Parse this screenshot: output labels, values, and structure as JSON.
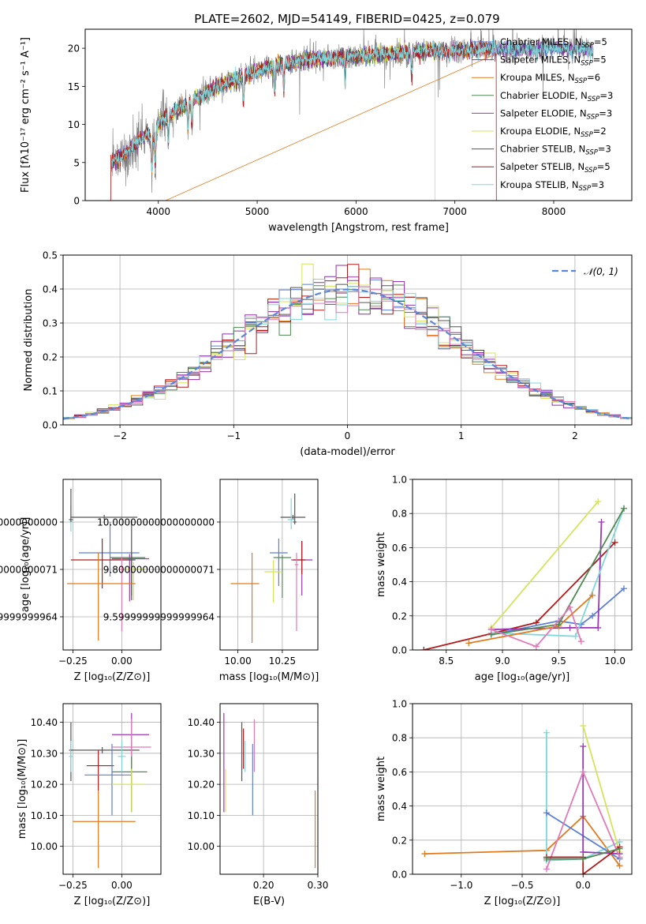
{
  "page_title": "PLATE=2602, MJD=54149, FIBERID=0425, z=0.079",
  "colors": {
    "Chabrier MILES": "#5b7fd6",
    "Salpeter MILES": "#8f2da8",
    "Kroupa MILES": "#e07a1f",
    "Chabrier ELODIE": "#4c8a52",
    "Salpeter ELODIE": "#9b36b4",
    "Kroupa ELODIE": "#d4e35a",
    "Chabrier STELIB": "#555555",
    "Salpeter STELIB": "#b01c1c",
    "Kroupa STELIB": "#7fd6db",
    "pink": "#e07ab8",
    "gaussian": "#5b87d9"
  },
  "chart_data": [
    {
      "id": "spectrum",
      "type": "line",
      "title": "PLATE=2602, MJD=54149, FIBERID=0425, z=0.079",
      "xlabel": "wavelength [Angstrom, rest frame]",
      "ylabel": "Flux [fλ10⁻¹⁷ erg cm⁻² s⁻¹ A⁻¹]",
      "xlim": [
        3260,
        8790
      ],
      "ylim": [
        0,
        22.5
      ],
      "xticks": [
        4000,
        5000,
        6000,
        7000,
        8000
      ],
      "yticks": [
        0,
        5,
        10,
        15,
        20
      ],
      "grid": false,
      "legend_position": "top-right",
      "legend": [
        {
          "name": "Chabrier MILES",
          "nssp": "5"
        },
        {
          "name": "Salpeter MILES",
          "nssp": "5"
        },
        {
          "name": "Kroupa MILES",
          "nssp": "6"
        },
        {
          "name": "Chabrier ELODIE",
          "nssp": "3"
        },
        {
          "name": "Salpeter ELODIE",
          "nssp": "3"
        },
        {
          "name": "Kroupa ELODIE",
          "nssp": "2"
        },
        {
          "name": "Chabrier STELIB",
          "nssp": "3"
        },
        {
          "name": "Salpeter STELIB",
          "nssp": "5"
        },
        {
          "name": "Kroupa STELIB",
          "nssp": "3"
        }
      ],
      "continuum": {
        "x": [
          3520,
          3600,
          3700,
          3800,
          3900,
          4000,
          4200,
          4400,
          4600,
          4800,
          5000,
          5200,
          5400,
          5600,
          5800,
          6000,
          6200,
          6400,
          6600,
          6800,
          7000,
          7200,
          7400,
          7600,
          7800,
          8000,
          8200,
          8400
        ],
        "y": [
          5,
          5.5,
          6.5,
          8,
          9,
          10,
          12,
          13.5,
          15,
          16,
          17,
          17.8,
          18.3,
          18.6,
          18.8,
          19,
          19.2,
          19.3,
          19.5,
          19.6,
          19.7,
          19.8,
          19.9,
          19.8,
          19.9,
          20,
          19.9,
          19.8
        ]
      }
    },
    {
      "id": "residuals",
      "type": "histogram",
      "xlabel": "(data-model)/error",
      "ylabel": "Normed distribution",
      "xlim": [
        -2.5,
        2.5
      ],
      "ylim": [
        0,
        0.5
      ],
      "xticks": [
        -2,
        -1,
        0,
        1,
        2
      ],
      "yticks": [
        0,
        0.1,
        0.2,
        0.3,
        0.4,
        0.5
      ],
      "grid": true,
      "legend_position": "top-right",
      "gaussian_label": "𝒩(0, 1)",
      "bin_width": 0.1
    },
    {
      "id": "age-vs-Z",
      "type": "scatter",
      "xlabel": "Z [log₁₀(Z/Z⊙)]",
      "ylabel": "age  [log₁₀(age/yr)]",
      "xlim": [
        -0.3,
        0.2
      ],
      "ylim": [
        9.46,
        10.18
      ],
      "xticks": [
        -0.25,
        0.0
      ],
      "yticks": [
        9.6,
        9.8,
        10.0
      ],
      "grid": true,
      "points": [
        {
          "series": "Chabrier STELIB",
          "x": -0.09,
          "xerr": [
            0.17,
            0.17
          ],
          "y": 10.02,
          "yerr": [
            0.01,
            0.01
          ]
        },
        {
          "series": "Kroupa STELIB",
          "x": -0.26,
          "xerr": [
            0.01,
            0.01
          ],
          "y": 10.0,
          "yerr": [
            0.04,
            0.07
          ]
        },
        {
          "series": "Chabrier STELIB",
          "x": -0.26,
          "xerr": [
            0.01,
            0.01
          ],
          "y": 10.01,
          "yerr": [
            0.01,
            0.13
          ]
        },
        {
          "series": "Chabrier MILES",
          "x": -0.06,
          "xerr": [
            0.16,
            0.15
          ],
          "y": 9.87,
          "yerr": [
            0.1,
            0.13
          ]
        },
        {
          "series": "Salpeter STELIB",
          "x": -0.1,
          "xerr": [
            0.16,
            0.15
          ],
          "y": 9.84,
          "yerr": [
            0.12,
            0.09
          ]
        },
        {
          "series": "Salpeter ELODIE",
          "x": 0.04,
          "xerr": [
            0.09,
            0.1
          ],
          "y": 9.845,
          "yerr": [
            0.18,
            0.02
          ]
        },
        {
          "series": "Chabrier ELODIE",
          "x": 0.05,
          "xerr": [
            0.11,
            0.07
          ],
          "y": 9.85,
          "yerr": [
            0.16,
            0.02
          ]
        },
        {
          "series": "Kroupa ELODIE",
          "x": 0.06,
          "xerr": [
            0.06,
            0.06
          ],
          "y": 9.8,
          "yerr": [
            0.13,
            0.03
          ]
        },
        {
          "series": "Chabrier STELIB",
          "x": 0.05,
          "xerr": [
            0.02,
            0.02
          ],
          "y": 9.84,
          "yerr": [
            0.17,
            0.17
          ]
        },
        {
          "series": "pink",
          "x": -0.0,
          "xerr": [
            0.01,
            0.01
          ],
          "y": 9.8,
          "yerr": [
            0.26,
            0.05
          ]
        },
        {
          "series": "Kroupa MILES",
          "x": -0.12,
          "xerr": [
            0.16,
            0.19
          ],
          "y": 9.74,
          "yerr": [
            0.24,
            0.13
          ]
        }
      ]
    },
    {
      "id": "age-vs-mass",
      "type": "scatter",
      "xlabel": "mass [log₁₀(M/M⊙)]",
      "ylabel": "",
      "xlim": [
        9.9,
        10.45
      ],
      "ylim": [
        9.46,
        10.18
      ],
      "xticks": [
        10.0,
        10.25
      ],
      "yticks": [
        9.6,
        9.8,
        10.0
      ],
      "grid": true,
      "points": [
        {
          "series": "Chabrier STELIB",
          "x": 10.31,
          "xerr": [
            0.07,
            0.07
          ],
          "y": 10.02,
          "yerr": [
            0.01,
            0.01
          ]
        },
        {
          "series": "Kroupa STELIB",
          "x": 10.3,
          "xerr": [
            0.02,
            0.02
          ],
          "y": 10.01,
          "yerr": [
            0.04,
            0.09
          ]
        },
        {
          "series": "Chabrier STELIB",
          "x": 10.32,
          "xerr": [
            0.01,
            0.01
          ],
          "y": 10.0,
          "yerr": [
            0.01,
            0.12
          ]
        },
        {
          "series": "Chabrier MILES",
          "x": 10.23,
          "xerr": [
            0.05,
            0.05
          ],
          "y": 9.87,
          "yerr": [
            0.14,
            0.06
          ]
        },
        {
          "series": "Chabrier ELODIE",
          "x": 10.25,
          "xerr": [
            0.05,
            0.05
          ],
          "y": 9.85,
          "yerr": [
            0.17,
            0.01
          ]
        },
        {
          "series": "Salpeter ELODIE",
          "x": 10.36,
          "xerr": [
            0.06,
            0.06
          ],
          "y": 9.84,
          "yerr": [
            0.15,
            0.08
          ]
        },
        {
          "series": "Salpeter STELIB",
          "x": 10.36,
          "xerr": [
            0.05,
            0.02
          ],
          "y": 9.84,
          "yerr": [
            0.06,
            0.08
          ]
        },
        {
          "series": "Kroupa ELODIE",
          "x": 10.2,
          "xerr": [
            0.05,
            0.05
          ],
          "y": 9.79,
          "yerr": [
            0.13,
            0.05
          ]
        },
        {
          "series": "pink",
          "x": 10.33,
          "xerr": [
            0.01,
            0.01
          ],
          "y": 9.82,
          "yerr": [
            0.28,
            0.05
          ]
        },
        {
          "series": "Kroupa MILES",
          "x": 10.08,
          "xerr": [
            0.12,
            0.04
          ],
          "y": 9.74,
          "yerr": [
            0.25,
            0.13
          ]
        }
      ]
    },
    {
      "id": "weight-vs-age",
      "type": "line",
      "xlabel": "age  [log₁₀(age/yr)]",
      "ylabel": "mass weight",
      "xlim": [
        8.2,
        10.15
      ],
      "ylim": [
        0,
        1.0
      ],
      "xticks": [
        8.5,
        9.0,
        9.5,
        10.0
      ],
      "yticks": [
        0,
        0.2,
        0.4,
        0.6,
        0.8,
        1.0
      ],
      "grid": true,
      "series": [
        {
          "name": "Kroupa ELODIE",
          "x": [
            8.9,
            9.85
          ],
          "y": [
            0.13,
            0.87
          ]
        },
        {
          "name": "Salpeter STELIB",
          "x": [
            8.3,
            9.3,
            10.0
          ],
          "y": [
            0.0,
            0.16,
            0.63
          ]
        },
        {
          "name": "Chabrier MILES",
          "x": [
            8.9,
            9.5,
            9.7,
            9.8,
            10.08
          ],
          "y": [
            0.09,
            0.17,
            0.15,
            0.2,
            0.36
          ]
        },
        {
          "name": "Salpeter ELODIE",
          "x": [
            8.9,
            9.6,
            9.85,
            9.88
          ],
          "y": [
            0.12,
            0.13,
            0.13,
            0.75
          ]
        },
        {
          "name": "Kroupa STELIB",
          "x": [
            8.9,
            9.65,
            10.08
          ],
          "y": [
            0.1,
            0.08,
            0.83
          ]
        },
        {
          "name": "Kroupa MILES",
          "x": [
            8.7,
            9.5,
            9.8
          ],
          "y": [
            0.04,
            0.14,
            0.32
          ]
        },
        {
          "name": "Chabrier ELODIE",
          "x": [
            8.9,
            9.5,
            10.08
          ],
          "y": [
            0.09,
            0.15,
            0.83
          ]
        },
        {
          "name": "pink",
          "x": [
            8.9,
            9.3,
            9.6,
            9.7
          ],
          "y": [
            0.12,
            0.02,
            0.25,
            0.05
          ]
        }
      ]
    },
    {
      "id": "mass-vs-Z",
      "type": "scatter",
      "xlabel": "Z [log₁₀(Z/Z⊙)]",
      "ylabel": "mass [log₁₀(M/M⊙)]",
      "xlim": [
        -0.3,
        0.2
      ],
      "ylim": [
        9.91,
        10.46
      ],
      "xticks": [
        -0.25,
        0.0
      ],
      "yticks": [
        10.0,
        10.1,
        10.2,
        10.3,
        10.4
      ],
      "grid": true,
      "points": [
        {
          "series": "Chabrier STELIB",
          "x": -0.26,
          "xerr": [
            0.01,
            0.01
          ],
          "y": 10.31,
          "yerr": [
            0.1,
            0.09
          ]
        },
        {
          "series": "Kroupa STELIB",
          "x": -0.26,
          "xerr": [
            0.01,
            0.01
          ],
          "y": 10.29,
          "yerr": [
            0.05,
            0.05
          ]
        },
        {
          "series": "Chabrier STELIB",
          "x": -0.1,
          "xerr": [
            0.16,
            0.19
          ],
          "y": 10.31,
          "yerr": [
            0.01,
            0.01
          ]
        },
        {
          "series": "Salpeter STELIB",
          "x": -0.12,
          "xerr": [
            0.06,
            0.08
          ],
          "y": 10.26,
          "yerr": [
            0.08,
            0.05
          ]
        },
        {
          "series": "Chabrier MILES",
          "x": -0.05,
          "xerr": [
            0.14,
            0.1
          ],
          "y": 10.23,
          "yerr": [
            0.13,
            0.1
          ]
        },
        {
          "series": "Salpeter ELODIE",
          "x": 0.05,
          "xerr": [
            0.1,
            0.09
          ],
          "y": 10.36,
          "yerr": [
            0.25,
            0.07
          ]
        },
        {
          "series": "pink",
          "x": 0.05,
          "xerr": [
            0.1,
            0.1
          ],
          "y": 10.32,
          "yerr": [
            0.08,
            0.09
          ]
        },
        {
          "series": "Chabrier ELODIE",
          "x": 0.05,
          "xerr": [
            0.1,
            0.08
          ],
          "y": 10.24,
          "yerr": [
            0.13,
            0.05
          ]
        },
        {
          "series": "Kroupa ELODIE",
          "x": 0.05,
          "xerr": [
            0.1,
            0.07
          ],
          "y": 10.2,
          "yerr": [
            0.09,
            0.05
          ]
        },
        {
          "series": "Kroupa STELIB",
          "x": -0.0,
          "xerr": [
            0.02,
            0.02
          ],
          "y": 10.29,
          "yerr": [
            0.05,
            0.05
          ]
        },
        {
          "series": "Kroupa MILES",
          "x": -0.12,
          "xerr": [
            0.13,
            0.19
          ],
          "y": 10.08,
          "yerr": [
            0.15,
            0.1
          ]
        }
      ]
    },
    {
      "id": "mass-vs-ebv",
      "type": "scatter",
      "xlabel": "E(B-V)",
      "ylabel": "",
      "xlim": [
        0.12,
        0.3
      ],
      "ylim": [
        9.91,
        10.46
      ],
      "xticks": [
        0.2,
        0.3
      ],
      "yticks": [
        10.0,
        10.1,
        10.2,
        10.3,
        10.4
      ],
      "grid": true,
      "points": [
        {
          "series": "Salpeter ELODIE",
          "x": 0.127,
          "y": 10.36,
          "yerr": [
            0.25,
            0.07
          ]
        },
        {
          "series": "Kroupa ELODIE",
          "x": 0.13,
          "y": 10.2,
          "yerr": [
            0.09,
            0.05
          ]
        },
        {
          "series": "Chabrier STELIB",
          "x": 0.16,
          "y": 10.31,
          "yerr": [
            0.1,
            0.09
          ]
        },
        {
          "series": "Salpeter STELIB",
          "x": 0.163,
          "y": 10.31,
          "yerr": [
            0.06,
            0.07
          ]
        },
        {
          "series": "Kroupa STELIB",
          "x": 0.166,
          "y": 10.29,
          "yerr": [
            0.05,
            0.05
          ]
        },
        {
          "series": "Chabrier MILES",
          "x": 0.18,
          "y": 10.23,
          "yerr": [
            0.13,
            0.1
          ]
        },
        {
          "series": "pink",
          "x": 0.183,
          "y": 10.32,
          "yerr": [
            0.08,
            0.09
          ]
        },
        {
          "series": "Kroupa MILES",
          "x": 0.295,
          "y": 10.08,
          "yerr": [
            0.15,
            0.1
          ]
        }
      ]
    },
    {
      "id": "weight-vs-Z",
      "type": "line",
      "xlabel": "Z [log₁₀(Z/Z⊙)]",
      "ylabel": "mass weight",
      "xlim": [
        -1.4,
        0.4
      ],
      "ylim": [
        0,
        1.0
      ],
      "xticks": [
        -1.0,
        -0.5,
        0.0
      ],
      "yticks": [
        0,
        0.2,
        0.4,
        0.6,
        0.8,
        1.0
      ],
      "grid": true,
      "series": [
        {
          "name": "Kroupa MILES",
          "x": [
            -1.3,
            -0.3,
            0.0,
            0.3
          ],
          "y": [
            0.12,
            0.14,
            0.34,
            0.05
          ]
        },
        {
          "name": "Kroupa STELIB",
          "x": [
            -0.3,
            -0.3,
            0.0,
            0.3
          ],
          "y": [
            0.83,
            0.08,
            0.09,
            0.19
          ]
        },
        {
          "name": "Chabrier MILES",
          "x": [
            -0.3,
            0.3
          ],
          "y": [
            0.36,
            0.09
          ]
        },
        {
          "name": "Kroupa ELODIE",
          "x": [
            0.0,
            0.3
          ],
          "y": [
            0.87,
            0.13
          ]
        },
        {
          "name": "Salpeter ELODIE",
          "x": [
            0.0,
            0.0,
            0.3
          ],
          "y": [
            0.75,
            0.13,
            0.12
          ]
        },
        {
          "name": "pink",
          "x": [
            -0.3,
            0.0,
            0.3
          ],
          "y": [
            0.03,
            0.6,
            0.1
          ]
        },
        {
          "name": "Salpeter STELIB",
          "x": [
            -0.3,
            0.0,
            0.0,
            0.3
          ],
          "y": [
            0.1,
            0.1,
            0.0,
            0.16
          ]
        },
        {
          "name": "Chabrier ELODIE",
          "x": [
            -0.3,
            0.0,
            0.3
          ],
          "y": [
            0.09,
            0.09,
            0.15
          ]
        }
      ]
    }
  ]
}
